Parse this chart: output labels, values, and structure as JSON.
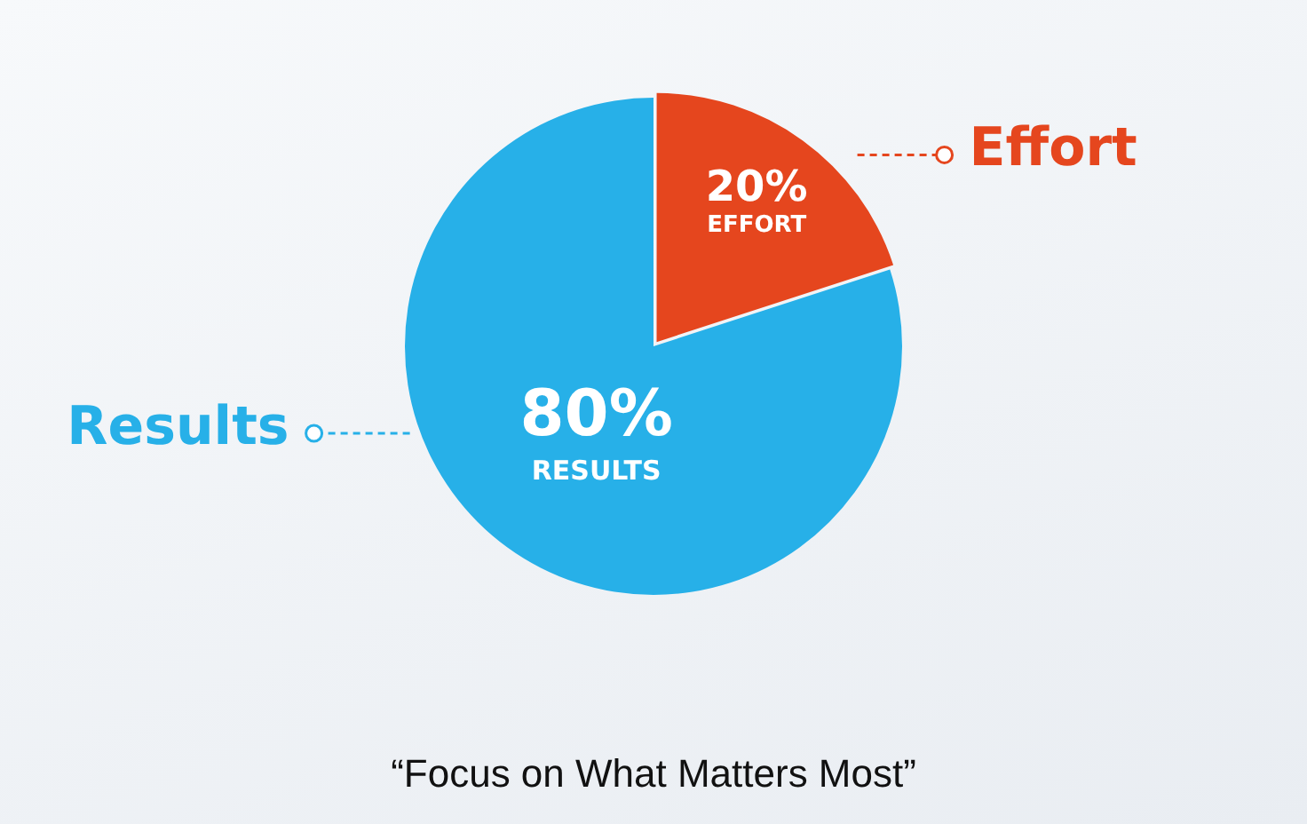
{
  "chart_data": {
    "type": "pie",
    "categories": [
      "Effort",
      "Results"
    ],
    "values": [
      20,
      80
    ],
    "colors": [
      "#e5461e",
      "#27b0e8"
    ],
    "value_labels": [
      "20%",
      "80%"
    ],
    "annotations": [
      {
        "text": "EFFORT",
        "x": "Effort"
      },
      {
        "text": "RESULTS",
        "x": "Results"
      },
      "“Focus on What Matters Most”"
    ],
    "legend": false
  }
}
